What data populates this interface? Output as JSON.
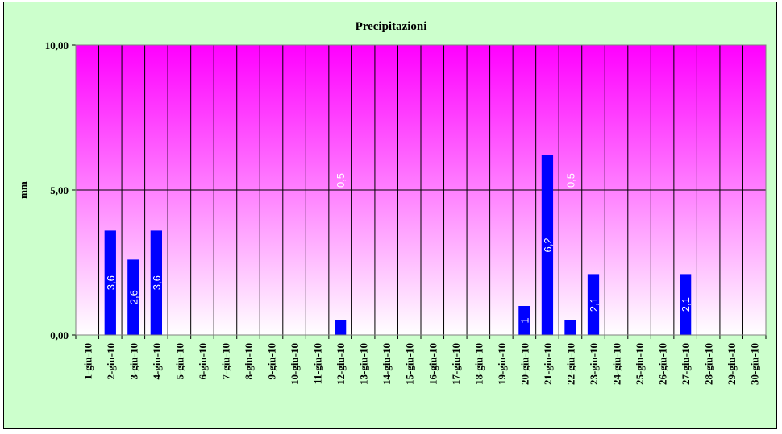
{
  "chart_data": {
    "type": "bar",
    "title": "Precipitazioni",
    "xlabel": "",
    "ylabel": "mm",
    "ylim": [
      0,
      10
    ],
    "yticks": [
      "0,00",
      "5,00",
      "10,00"
    ],
    "ytick_values": [
      0,
      5,
      10
    ],
    "grid": true,
    "legend": "none",
    "categories": [
      "1-giu-10",
      "2-giu-10",
      "3-giu-10",
      "4-giu-10",
      "5-giu-10",
      "6-giu-10",
      "7-giu-10",
      "8-giu-10",
      "9-giu-10",
      "10-giu-10",
      "11-giu-10",
      "12-giu-10",
      "13-giu-10",
      "14-giu-10",
      "15-giu-10",
      "16-giu-10",
      "17-giu-10",
      "18-giu-10",
      "19-giu-10",
      "20-giu-10",
      "21-giu-10",
      "22-giu-10",
      "23-giu-10",
      "24-giu-10",
      "25-giu-10",
      "26-giu-10",
      "27-giu-10",
      "28-giu-10",
      "29-giu-10",
      "30-giu-10"
    ],
    "values": [
      0,
      3.6,
      2.6,
      3.6,
      0,
      0,
      0,
      0,
      0,
      0,
      0,
      0.5,
      0,
      0,
      0,
      0,
      0,
      0,
      0,
      1,
      6.2,
      0.5,
      2.1,
      0,
      0,
      0,
      2.1,
      0,
      0,
      0
    ],
    "data_labels": [
      "",
      "3,6",
      "2,6",
      "3,6",
      "",
      "",
      "",
      "",
      "",
      "",
      "",
      "0,5",
      "",
      "",
      "",
      "",
      "",
      "",
      "",
      "1",
      "6,2",
      "0,5",
      "2,1",
      "",
      "",
      "",
      "2,1",
      "",
      "",
      ""
    ],
    "colors": {
      "bar": "#0000ff",
      "plot_top": "#ff00ff",
      "plot_bottom": "#ffffff",
      "frame_background": "#ccffcc",
      "gridline": "#000000",
      "label_text": "#ffffff"
    }
  }
}
